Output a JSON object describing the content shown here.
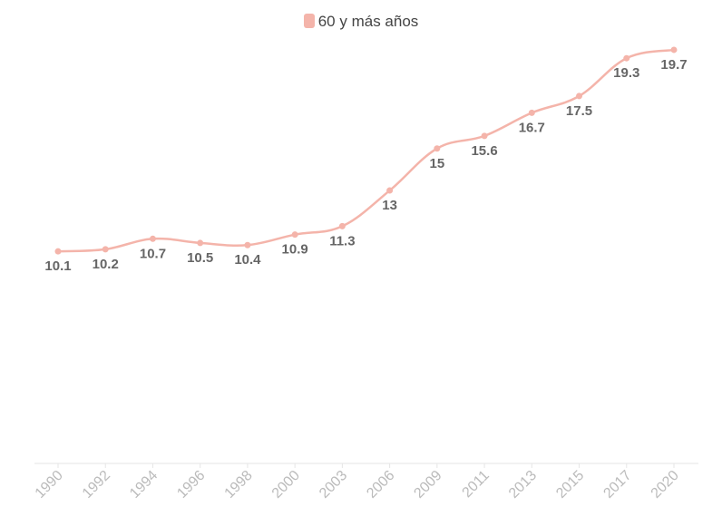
{
  "chart_data": {
    "type": "line",
    "title": "",
    "xlabel": "",
    "ylabel": "",
    "legend_position": "top-center",
    "grid": false,
    "ylim": [
      0,
      21
    ],
    "categories": [
      "1990",
      "1992",
      "1994",
      "1996",
      "1998",
      "2000",
      "2003",
      "2006",
      "2009",
      "2011",
      "2013",
      "2015",
      "2017",
      "2020"
    ],
    "series": [
      {
        "name": "60 y más años",
        "color": "#f4b4aa",
        "values": [
          10.1,
          10.2,
          10.7,
          10.5,
          10.4,
          10.9,
          11.3,
          13,
          15,
          15.6,
          16.7,
          17.5,
          19.3,
          19.7
        ],
        "data_labels": [
          "10.1",
          "10.2",
          "10.7",
          "10.5",
          "10.4",
          "10.9",
          "11.3",
          "13",
          "15",
          "15.6",
          "16.7",
          "17.5",
          "19.3",
          "19.7"
        ]
      }
    ]
  }
}
